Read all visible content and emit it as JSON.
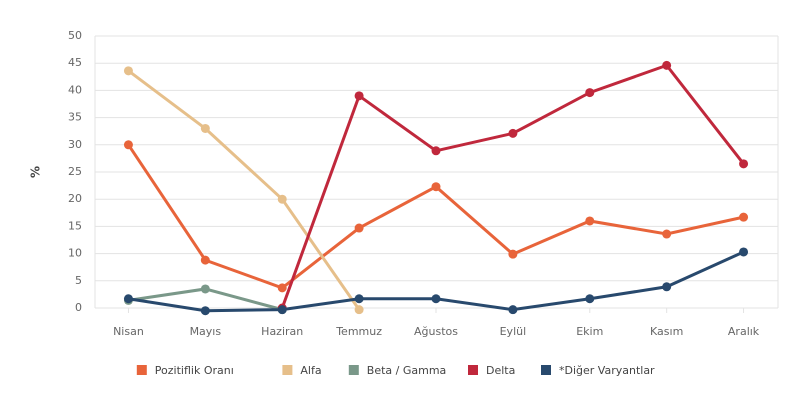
{
  "chart_data": {
    "type": "line",
    "ylabel": "%",
    "categories": [
      "Nisan",
      "Mayıs",
      "Haziran",
      "Temmuz",
      "Ağustos",
      "Eylül",
      "Ekim",
      "Kasım",
      "Aralık"
    ],
    "series": [
      {
        "name": "Pozitiflik Oranı",
        "color": "#e8643a",
        "values": [
          30,
          8.8,
          3.7,
          14.7,
          22.3,
          9.9,
          16,
          13.6,
          16.7
        ]
      },
      {
        "name": "Alfa",
        "color": "#e6bf8a",
        "values": [
          43.6,
          33,
          20,
          -0.3,
          null,
          null,
          null,
          null,
          null
        ]
      },
      {
        "name": "Beta / Gamma",
        "color": "#7a9889",
        "values": [
          1.4,
          3.5,
          -0.3,
          null,
          null,
          null,
          null,
          null,
          null
        ]
      },
      {
        "name": "Delta",
        "color": "#c0283c",
        "values": [
          null,
          null,
          0,
          39,
          28.9,
          32.1,
          39.6,
          44.6,
          26.5
        ]
      },
      {
        "name": "*Diğer Varyantlar",
        "color": "#28496d",
        "values": [
          1.7,
          -0.5,
          -0.3,
          1.7,
          1.7,
          -0.3,
          1.7,
          3.9,
          10.3
        ]
      }
    ],
    "ylim": [
      0,
      50
    ],
    "yticks": [
      0,
      5,
      10,
      15,
      20,
      25,
      30,
      35,
      40,
      45,
      50
    ],
    "grid": true
  }
}
